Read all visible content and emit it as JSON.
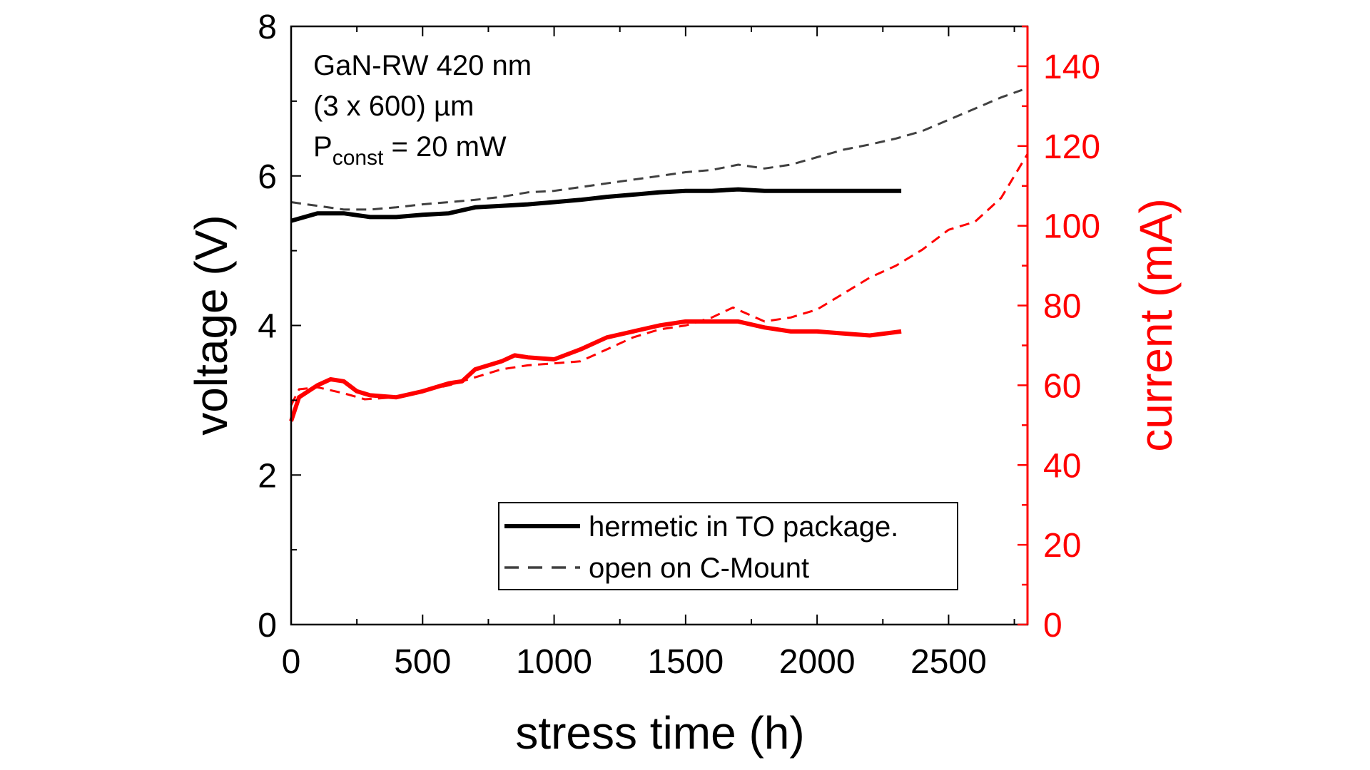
{
  "chart_data": {
    "type": "line",
    "xlabel": "stress time (h)",
    "ylabel": "voltage (V)",
    "y2label": "current (mA)",
    "xlim": [
      0,
      2800
    ],
    "ylim": [
      0,
      8
    ],
    "y2lim": [
      0,
      150
    ],
    "xticks": [
      0,
      500,
      1000,
      1500,
      2000,
      2500
    ],
    "yticks": [
      0,
      2,
      4,
      6,
      8
    ],
    "y2ticks": [
      0,
      20,
      40,
      60,
      80,
      100,
      120,
      140
    ],
    "grid": false,
    "colors": {
      "voltage": "#000000",
      "voltage_open": "#404040",
      "current": "#ff0000"
    },
    "annotation": {
      "line1": "GaN-RW 420 nm",
      "line2": "(3 x 600) µm",
      "line3_main": "P",
      "line3_sub": "const",
      "line3_rest": " = 20 mW"
    },
    "legend": {
      "placement": "bottom-center",
      "entries": [
        {
          "label": "hermetic in TO package.",
          "style": "solid"
        },
        {
          "label": "open on C-Mount",
          "style": "dashed"
        }
      ]
    },
    "series": [
      {
        "name": "hermetic in TO package.",
        "axis": "left",
        "style": "solid",
        "color": "#000000",
        "x": [
          0,
          100,
          200,
          300,
          400,
          500,
          600,
          700,
          800,
          900,
          1000,
          1100,
          1200,
          1300,
          1400,
          1500,
          1600,
          1700,
          1800,
          1900,
          2000,
          2100,
          2200,
          2320
        ],
        "y": [
          5.4,
          5.5,
          5.5,
          5.45,
          5.45,
          5.48,
          5.5,
          5.58,
          5.6,
          5.62,
          5.65,
          5.68,
          5.72,
          5.75,
          5.78,
          5.8,
          5.8,
          5.82,
          5.8,
          5.8,
          5.8,
          5.8,
          5.8,
          5.8
        ]
      },
      {
        "name": "open on C-Mount",
        "axis": "left",
        "style": "dashed",
        "color": "#404040",
        "x": [
          0,
          100,
          200,
          300,
          400,
          500,
          600,
          700,
          800,
          900,
          1000,
          1100,
          1200,
          1300,
          1400,
          1500,
          1600,
          1700,
          1800,
          1900,
          2000,
          2100,
          2200,
          2300,
          2400,
          2500,
          2600,
          2700,
          2780
        ],
        "y": [
          5.65,
          5.6,
          5.55,
          5.55,
          5.58,
          5.62,
          5.65,
          5.68,
          5.72,
          5.78,
          5.8,
          5.85,
          5.9,
          5.95,
          6.0,
          6.05,
          6.08,
          6.15,
          6.1,
          6.15,
          6.25,
          6.35,
          6.42,
          6.5,
          6.6,
          6.75,
          6.9,
          7.05,
          7.15
        ]
      },
      {
        "name": "hermetic in TO package.",
        "axis": "right",
        "style": "solid",
        "color": "#ff0000",
        "x": [
          0,
          30,
          100,
          150,
          200,
          250,
          300,
          400,
          500,
          600,
          650,
          700,
          800,
          850,
          900,
          1000,
          1100,
          1200,
          1300,
          1400,
          1500,
          1600,
          1700,
          1800,
          1900,
          2000,
          2100,
          2200,
          2320
        ],
        "y": [
          51,
          57,
          60,
          61.5,
          61,
          58.5,
          57.5,
          57,
          58.5,
          60.5,
          61,
          64,
          66,
          67.5,
          67,
          66.5,
          69,
          72,
          73.5,
          75,
          76,
          76,
          76,
          74.5,
          73.5,
          73.5,
          73,
          72.5,
          73.5
        ]
      },
      {
        "name": "open on C-Mount",
        "axis": "right",
        "style": "dashed",
        "color": "#ff0000",
        "x": [
          0,
          30,
          100,
          200,
          280,
          400,
          500,
          600,
          700,
          800,
          900,
          1000,
          1100,
          1200,
          1300,
          1400,
          1500,
          1600,
          1680,
          1800,
          1900,
          2000,
          2100,
          2200,
          2300,
          2400,
          2500,
          2600,
          2700,
          2800
        ],
        "y": [
          55,
          59,
          59.5,
          58,
          56.5,
          57,
          58.5,
          60,
          62,
          64,
          65,
          65.5,
          66,
          69,
          72,
          74,
          75,
          77,
          79.5,
          76,
          77,
          79,
          83,
          87,
          90,
          94,
          99,
          101,
          107,
          118
        ]
      }
    ]
  }
}
